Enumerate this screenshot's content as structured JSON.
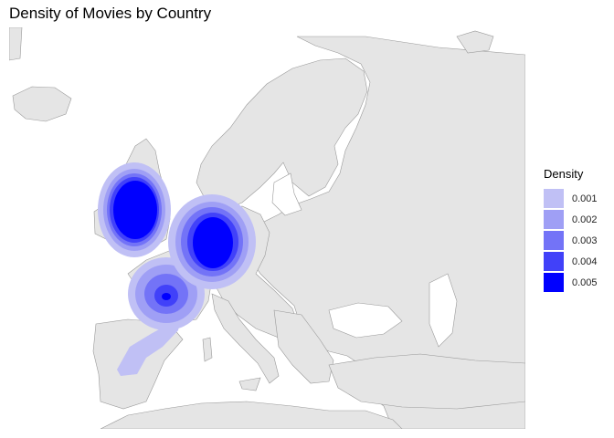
{
  "title": "Density of Movies by Country",
  "legend": {
    "title": "Density",
    "items": [
      {
        "label": "0.001",
        "color": "#C0C0F5"
      },
      {
        "label": "0.002",
        "color": "#9F9FF5"
      },
      {
        "label": "0.003",
        "color": "#7373F7"
      },
      {
        "label": "0.004",
        "color": "#4141F9"
      },
      {
        "label": "0.005",
        "color": "#0000FF"
      }
    ]
  },
  "colors": {
    "land": "#E5E5E5",
    "border": "#999999",
    "sea": "#FFFFFF"
  },
  "density_regions": [
    {
      "name": "United Kingdom",
      "peak_level": 5
    },
    {
      "name": "Germany",
      "peak_level": 5
    },
    {
      "name": "France",
      "peak_level": 5
    },
    {
      "name": "Spain",
      "peak_level": 1
    }
  ]
}
